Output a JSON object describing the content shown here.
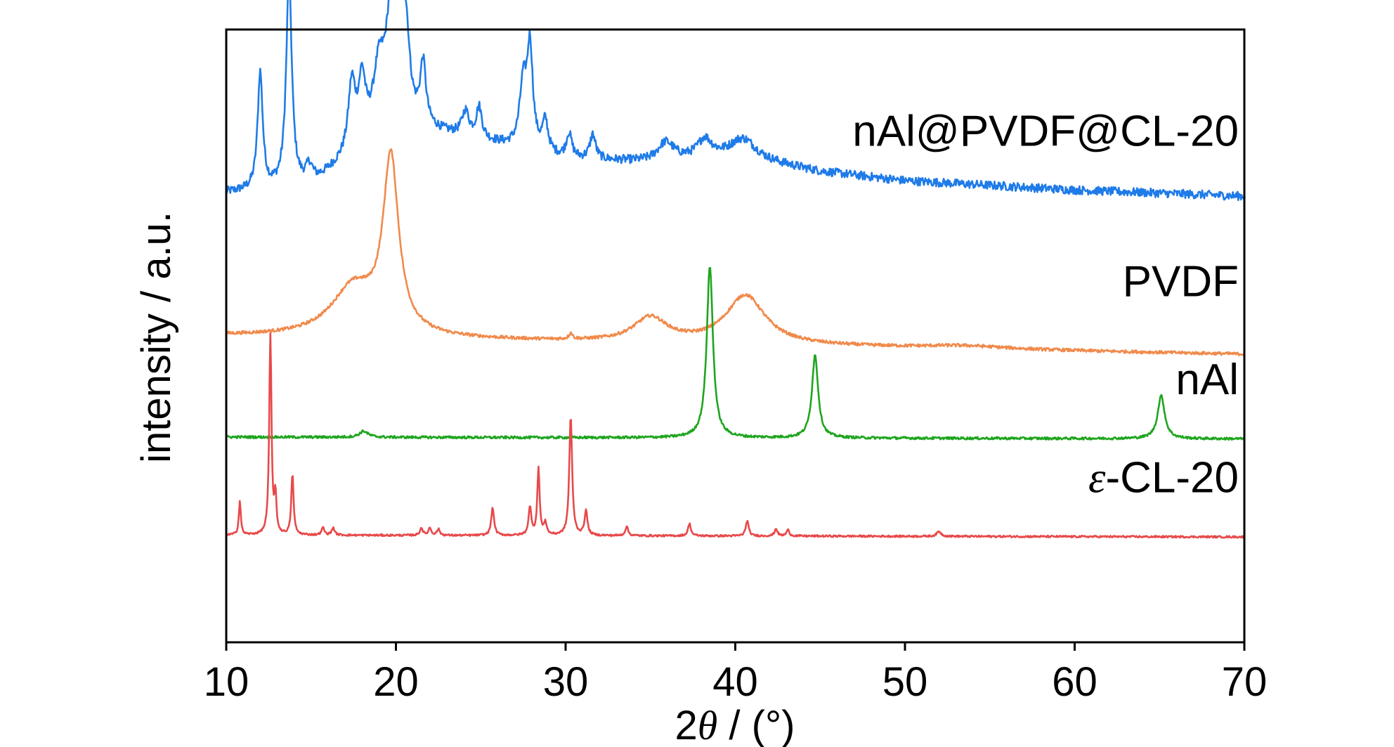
{
  "chart_data": {
    "type": "line",
    "xlabel": "2θ / (°)",
    "xlabel_parts": {
      "pre": "2",
      "theta": "θ",
      "post": " / (°)"
    },
    "ylabel": "intensity / a.u.",
    "xlim": [
      10,
      70
    ],
    "x_ticks": [
      10,
      20,
      30,
      40,
      50,
      60,
      70
    ],
    "y_ticks": [],
    "grid": false,
    "legend": "labels placed at right end of each curve",
    "series": [
      {
        "name": "nAl@PVDF@CL-20",
        "color": "#1f7be8",
        "offset": 0.733,
        "baseline": [
          [
            10,
            0.0
          ],
          [
            15,
            0.01
          ],
          [
            20,
            0.11
          ],
          [
            25,
            0.085
          ],
          [
            30,
            0.055
          ],
          [
            35,
            0.05
          ],
          [
            40,
            0.06
          ],
          [
            45,
            0.035
          ],
          [
            50,
            0.02
          ],
          [
            60,
            0.005
          ],
          [
            70,
            -0.005
          ]
        ],
        "peaks": [
          [
            12.0,
            0.19,
            0.18
          ],
          [
            13.7,
            0.34,
            0.2
          ],
          [
            14.9,
            0.03,
            0.25
          ],
          [
            17.4,
            0.11,
            0.25
          ],
          [
            18.0,
            0.1,
            0.25
          ],
          [
            19.0,
            0.1,
            0.4
          ],
          [
            19.7,
            0.16,
            0.35
          ],
          [
            20.2,
            0.19,
            0.25
          ],
          [
            20.6,
            0.12,
            0.25
          ],
          [
            21.6,
            0.1,
            0.2
          ],
          [
            24.1,
            0.04,
            0.25
          ],
          [
            24.9,
            0.05,
            0.2
          ],
          [
            27.5,
            0.1,
            0.25
          ],
          [
            27.9,
            0.16,
            0.2
          ],
          [
            28.8,
            0.05,
            0.2
          ],
          [
            30.2,
            0.04,
            0.2
          ],
          [
            31.6,
            0.04,
            0.2
          ],
          [
            35.9,
            0.03,
            0.6
          ],
          [
            38.2,
            0.03,
            0.5
          ],
          [
            40.5,
            0.03,
            0.9
          ]
        ],
        "noise": 0.007,
        "label_anchor": [
          70,
          0.81
        ]
      },
      {
        "name": "PVDF",
        "color": "#f08a4b",
        "offset": 0.5,
        "baseline": [
          [
            10,
            0.0
          ],
          [
            70,
            -0.03
          ]
        ],
        "peaks": [
          [
            17.5,
            0.08,
            1.6
          ],
          [
            19.7,
            0.28,
            0.55
          ],
          [
            30.3,
            0.01,
            0.12
          ],
          [
            35.0,
            0.04,
            1.2
          ],
          [
            40.6,
            0.08,
            1.4
          ],
          [
            53.5,
            0.005,
            3.0
          ]
        ],
        "noise": 0.0025,
        "label_anchor": [
          70,
          0.565
        ]
      },
      {
        "name": "nAl",
        "color": "#1ea51e",
        "offset": 0.335,
        "baseline": [
          [
            10,
            0.0
          ],
          [
            70,
            -0.003
          ]
        ],
        "peaks": [
          [
            18.1,
            0.01,
            0.3
          ],
          [
            38.5,
            0.28,
            0.22
          ],
          [
            44.7,
            0.135,
            0.22
          ],
          [
            65.1,
            0.07,
            0.25
          ]
        ],
        "noise": 0.002,
        "label_anchor": [
          70,
          0.405
        ]
      },
      {
        "name": "ε-CL-20",
        "name_parts": {
          "epsilon": "ε",
          "rest": "-CL-20"
        },
        "color": "#e8494a",
        "offset": 0.175,
        "baseline": [
          [
            10,
            0.0
          ],
          [
            70,
            -0.003
          ]
        ],
        "peaks": [
          [
            10.8,
            0.055,
            0.07
          ],
          [
            12.6,
            0.325,
            0.08
          ],
          [
            12.9,
            0.06,
            0.07
          ],
          [
            13.9,
            0.1,
            0.08
          ],
          [
            15.7,
            0.012,
            0.1
          ],
          [
            16.3,
            0.012,
            0.1
          ],
          [
            21.5,
            0.012,
            0.1
          ],
          [
            22.0,
            0.012,
            0.1
          ],
          [
            22.5,
            0.01,
            0.1
          ],
          [
            25.7,
            0.045,
            0.1
          ],
          [
            27.9,
            0.045,
            0.1
          ],
          [
            28.4,
            0.11,
            0.08
          ],
          [
            28.8,
            0.02,
            0.1
          ],
          [
            30.3,
            0.195,
            0.1
          ],
          [
            31.2,
            0.04,
            0.1
          ],
          [
            33.6,
            0.015,
            0.1
          ],
          [
            37.3,
            0.02,
            0.1
          ],
          [
            40.7,
            0.025,
            0.1
          ],
          [
            42.4,
            0.012,
            0.1
          ],
          [
            43.1,
            0.01,
            0.1
          ],
          [
            52.0,
            0.008,
            0.15
          ]
        ],
        "noise": 0.0015,
        "label_anchor": [
          70,
          0.245
        ]
      }
    ]
  }
}
